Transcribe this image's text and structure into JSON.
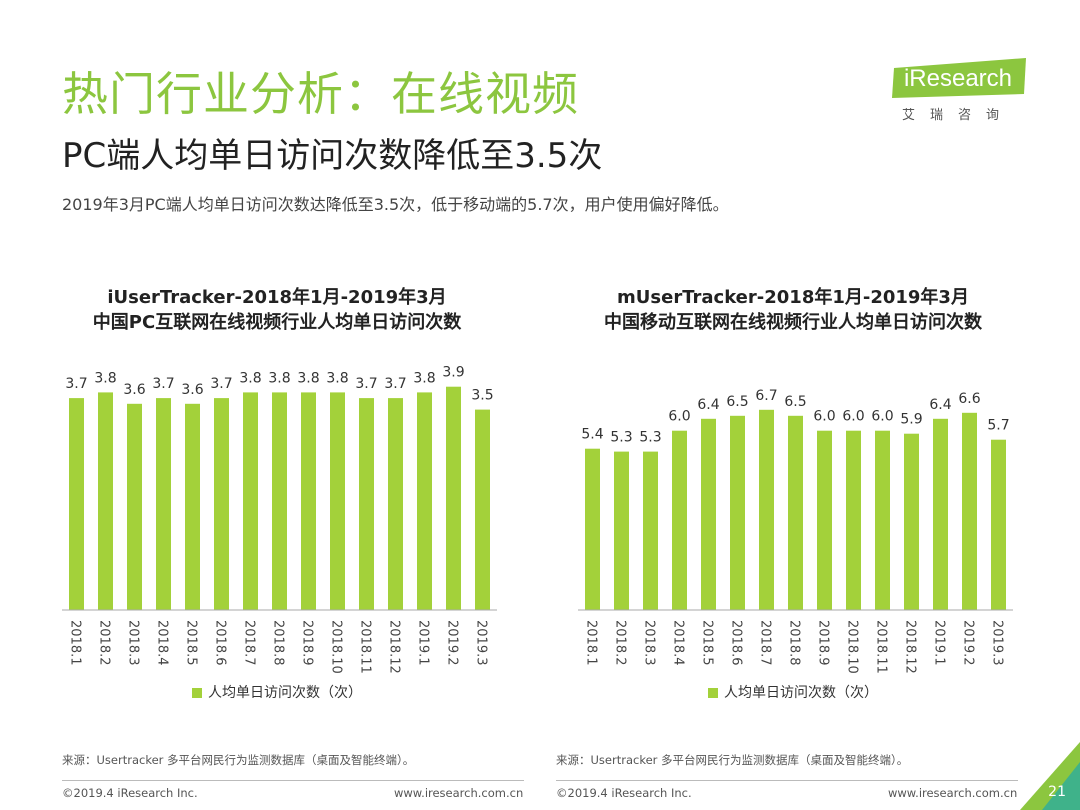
{
  "header": {
    "title": "热门行业分析：在线视频",
    "subtitle": "PC端人均单日访问次数降低至3.5次",
    "description": "2019年3月PC端人均单日访问次数达降低至3.5次，低于移动端的5.7次，用户使用偏好降低。"
  },
  "logo": {
    "brand": "iResearch",
    "cn": "艾瑞咨询"
  },
  "colors": {
    "accent": "#8cc63f",
    "bar": "#a3d13a"
  },
  "chart_data": [
    {
      "type": "bar",
      "title": "iUserTracker-2018年1月-2019年3月",
      "subtitle": "中国PC互联网在线视频行业人均单日访问次数",
      "categories": [
        "2018.1",
        "2018.2",
        "2018.3",
        "2018.4",
        "2018.5",
        "2018.6",
        "2018.7",
        "2018.8",
        "2018.9",
        "2018.10",
        "2018.11",
        "2018.12",
        "2019.1",
        "2019.2",
        "2019.3"
      ],
      "series": [
        {
          "name": "人均单日访问次数（次）",
          "values": [
            3.7,
            3.8,
            3.6,
            3.7,
            3.6,
            3.7,
            3.8,
            3.8,
            3.8,
            3.8,
            3.7,
            3.7,
            3.8,
            3.9,
            3.5
          ]
        }
      ],
      "legend": "bottom"
    },
    {
      "type": "bar",
      "title": "mUserTracker-2018年1月-2019年3月",
      "subtitle": "中国移动互联网在线视频行业人均单日访问次数",
      "categories": [
        "2018.1",
        "2018.2",
        "2018.3",
        "2018.4",
        "2018.5",
        "2018.6",
        "2018.7",
        "2018.8",
        "2018.9",
        "2018.10",
        "2018.11",
        "2018.12",
        "2019.1",
        "2019.2",
        "2019.3"
      ],
      "series": [
        {
          "name": "人均单日访问次数（次）",
          "values": [
            5.4,
            5.3,
            5.3,
            6.0,
            6.4,
            6.5,
            6.7,
            6.5,
            6.0,
            6.0,
            6.0,
            5.9,
            6.4,
            6.6,
            5.7
          ]
        }
      ],
      "legend": "bottom"
    }
  ],
  "footer": {
    "source": "来源：Usertracker 多平台网民行为监测数据库（桌面及智能终端）。",
    "copyright": "©2019.4 iResearch Inc.",
    "website": "www.iresearch.com.cn",
    "page": "21"
  }
}
